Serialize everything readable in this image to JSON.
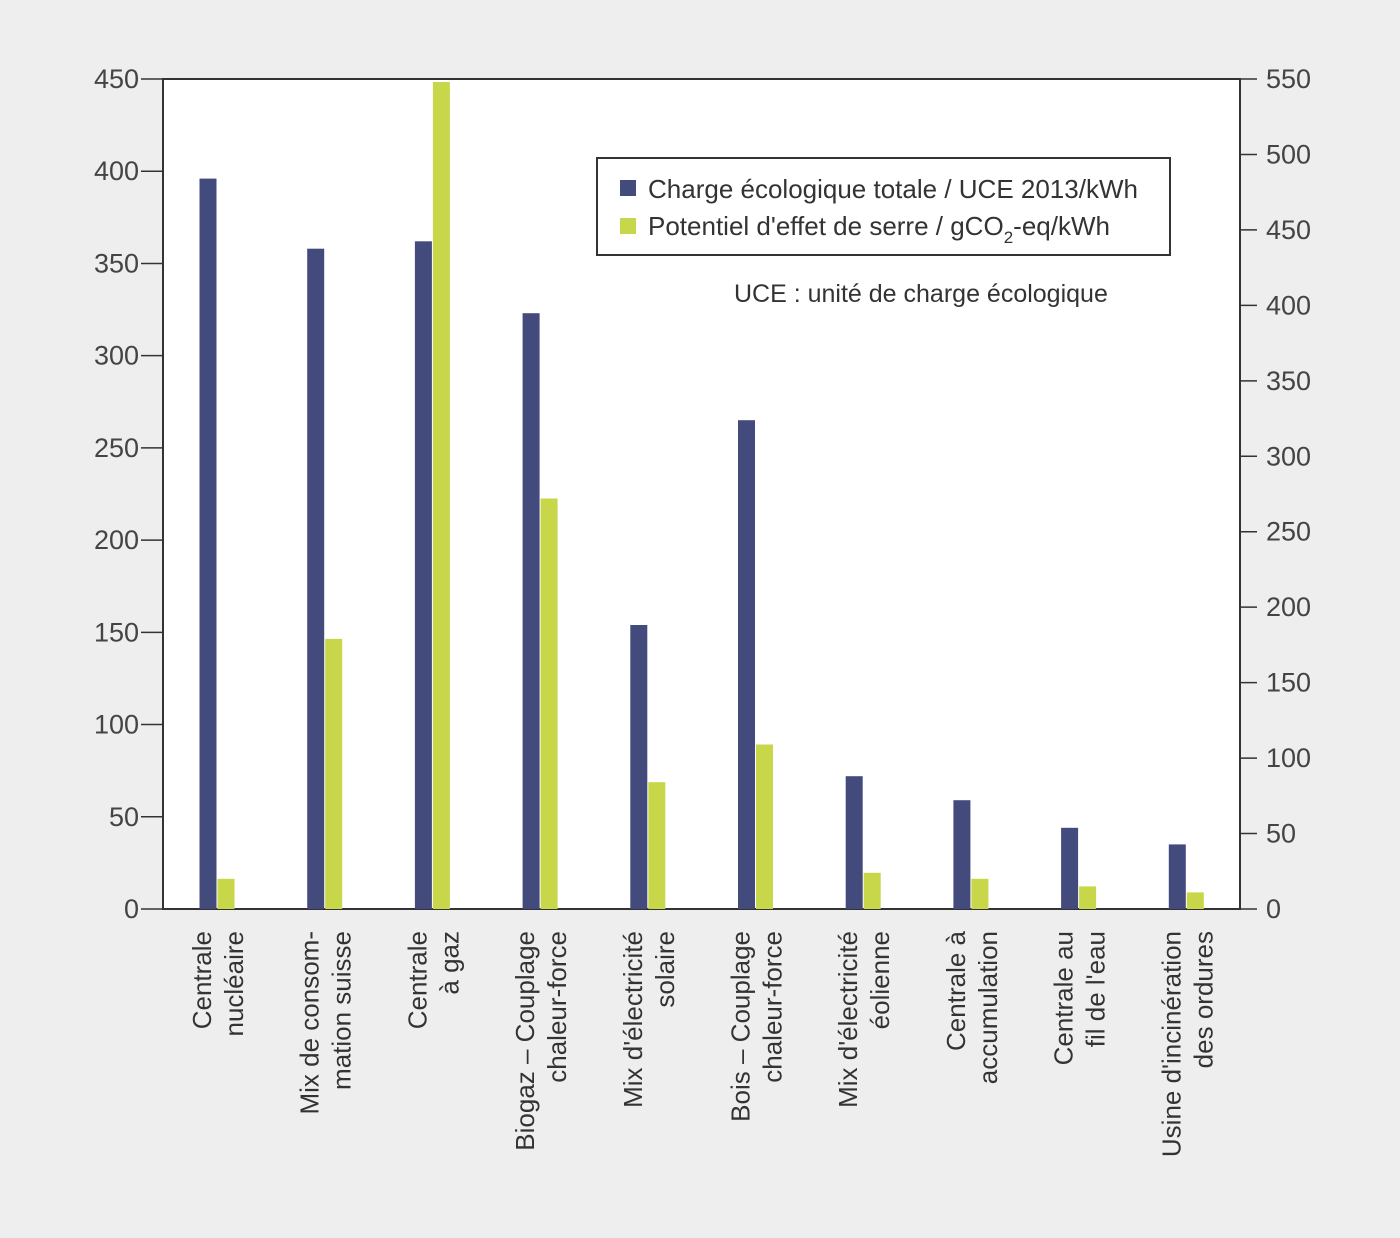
{
  "chart_data": {
    "type": "bar",
    "categories": [
      [
        "Centrale",
        "nucléaire"
      ],
      [
        "Mix de consom-",
        "mation suisse"
      ],
      [
        "Centrale",
        "à gaz"
      ],
      [
        "Biogaz – Couplage",
        "chaleur-force"
      ],
      [
        "Mix d'électricité",
        "solaire"
      ],
      [
        "Bois – Couplage",
        "chaleur-force"
      ],
      [
        "Mix d'électricité",
        "éolienne"
      ],
      [
        "Centrale à",
        "accumulation"
      ],
      [
        "Centrale au",
        "fil de l'eau"
      ],
      [
        "Usine d'incinération",
        "des ordures"
      ]
    ],
    "series": [
      {
        "name": "Charge écologique totale / UCE 2013/kWh",
        "axis": "left",
        "color": "#434b7c",
        "values": [
          396,
          358,
          362,
          323,
          154,
          265,
          72,
          59,
          44,
          35
        ]
      },
      {
        "name_parts": [
          "Potentiel d'effet de serre / gCO",
          "2",
          "-eq/kWh"
        ],
        "axis": "right",
        "color": "#c8d64a",
        "values": [
          20,
          179,
          548,
          272,
          84,
          109,
          24,
          20,
          15,
          11
        ]
      }
    ],
    "y_left": {
      "ylim": [
        0,
        450
      ],
      "ticks": [
        0,
        50,
        100,
        150,
        200,
        250,
        300,
        350,
        400,
        450
      ]
    },
    "y_right": {
      "ylim": [
        0,
        550
      ],
      "ticks": [
        0,
        50,
        100,
        150,
        200,
        250,
        300,
        350,
        400,
        450,
        500,
        550
      ]
    },
    "legend_position": "top-right",
    "annotation": "UCE : unité de charge écologique",
    "grid": false
  }
}
